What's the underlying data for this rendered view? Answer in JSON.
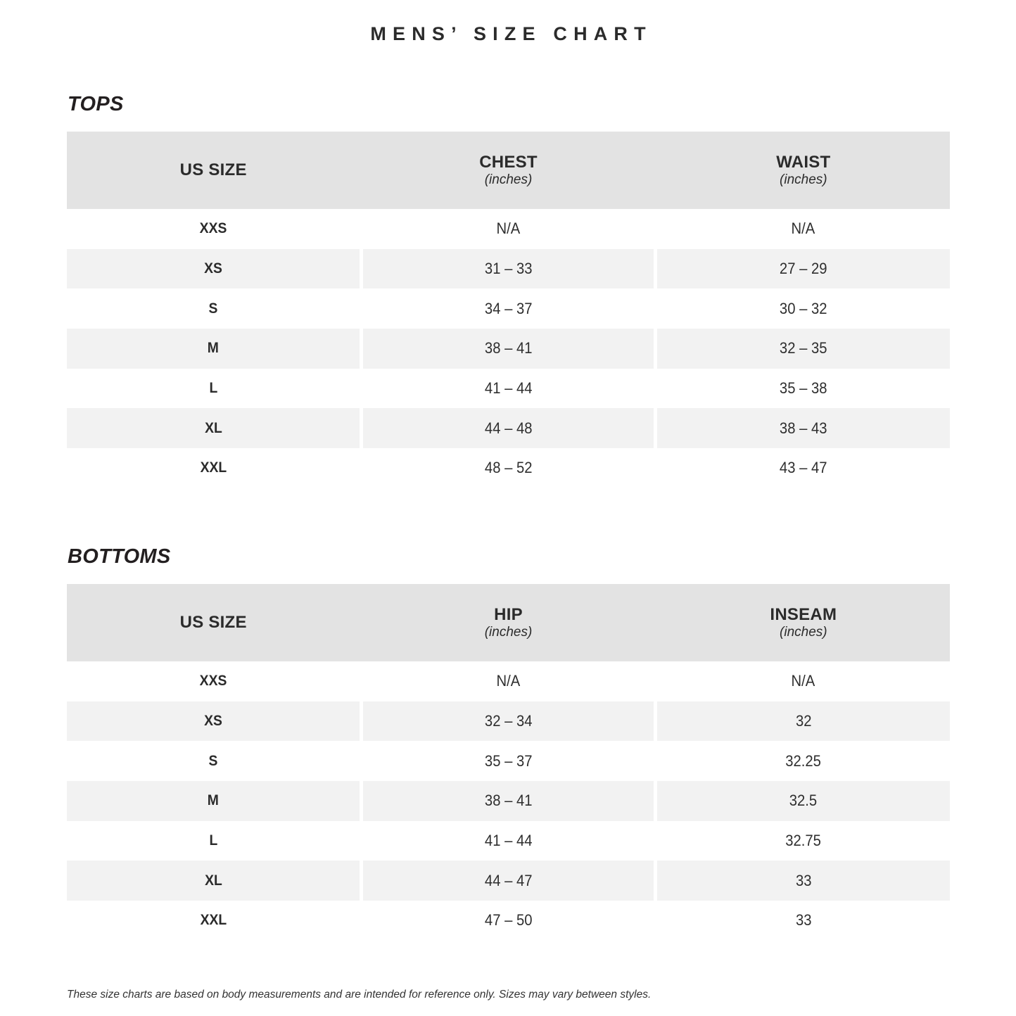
{
  "page": {
    "title": "MENS’ SIZE CHART",
    "footnote": "These size charts are based on body measurements and are intended for reference only. Sizes may vary between styles."
  },
  "colors": {
    "header_band": "#e3e3e3",
    "stripe_row": "#f2f2f2",
    "text": "#262626",
    "background": "#ffffff"
  },
  "tops": {
    "title": "TOPS",
    "columns": [
      {
        "label": "US SIZE",
        "unit": ""
      },
      {
        "label": "CHEST",
        "unit": "(inches)"
      },
      {
        "label": "WAIST",
        "unit": "(inches)"
      }
    ],
    "rows": [
      {
        "size": "XXS",
        "values": [
          "N/A",
          "N/A"
        ]
      },
      {
        "size": "XS",
        "values": [
          "31 – 33",
          "27 – 29"
        ]
      },
      {
        "size": "S",
        "values": [
          "34 – 37",
          "30 – 32"
        ]
      },
      {
        "size": "M",
        "values": [
          "38 – 41",
          "32 – 35"
        ]
      },
      {
        "size": "L",
        "values": [
          "41 – 44",
          "35 – 38"
        ]
      },
      {
        "size": "XL",
        "values": [
          "44 – 48",
          "38 – 43"
        ]
      },
      {
        "size": "XXL",
        "values": [
          "48 – 52",
          "43 – 47"
        ]
      }
    ]
  },
  "bottoms": {
    "title": "BOTTOMS",
    "columns": [
      {
        "label": "US SIZE",
        "unit": ""
      },
      {
        "label": "HIP",
        "unit": "(inches)"
      },
      {
        "label": "INSEAM",
        "unit": "(inches)"
      }
    ],
    "rows": [
      {
        "size": "XXS",
        "values": [
          "N/A",
          "N/A"
        ]
      },
      {
        "size": "XS",
        "values": [
          "32 – 34",
          "32"
        ]
      },
      {
        "size": "S",
        "values": [
          "35 – 37",
          "32.25"
        ]
      },
      {
        "size": "M",
        "values": [
          "38 – 41",
          "32.5"
        ]
      },
      {
        "size": "L",
        "values": [
          "41 – 44",
          "32.75"
        ]
      },
      {
        "size": "XL",
        "values": [
          "44 – 47",
          "33"
        ]
      },
      {
        "size": "XXL",
        "values": [
          "47 – 50",
          "33"
        ]
      }
    ]
  }
}
